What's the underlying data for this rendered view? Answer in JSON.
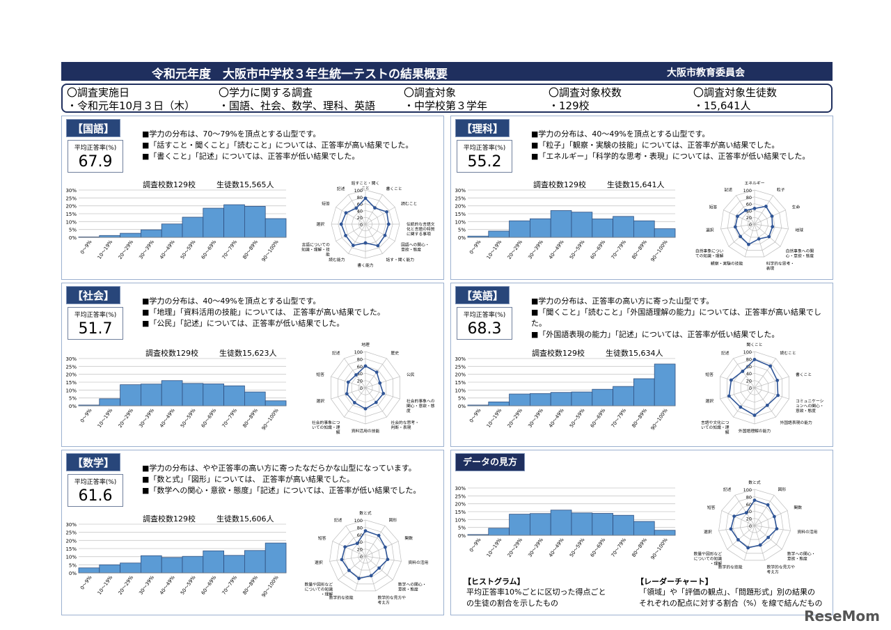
{
  "title": "令和元年度　大阪市中学校３年生統一テストの結果概要",
  "organization": "大阪市教育委員会",
  "info": [
    {
      "heading": "〇調査実施日",
      "value": "・令和元年10月３日（木）"
    },
    {
      "heading": "〇学力に関する調査",
      "value": "・国語、社会、数学、理科、英語"
    },
    {
      "heading": "〇調査対象",
      "value": "・中学校第３学年"
    },
    {
      "heading": "〇調査対象校数",
      "value": "・129校"
    },
    {
      "heading": "〇調査対象生徒数",
      "value": "・15,641人"
    }
  ],
  "avg_label": "平均正答率(%)",
  "hist_categories": [
    "0～9%",
    "10～19%",
    "20～29%",
    "30～39%",
    "40～49%",
    "50～59%",
    "60～69%",
    "70～79%",
    "80～89%",
    "90～100%"
  ],
  "y_ticks": [
    "0%",
    "5%",
    "10%",
    "15%",
    "20%",
    "25%",
    "30%"
  ],
  "radar_ticks": [
    "0",
    "20",
    "40",
    "60",
    "80",
    "100"
  ],
  "subjects": {
    "kokugo": {
      "tag": "【国語】",
      "avg": "67.9",
      "notes": [
        "■学力の分布は、70～79%を頂点とする山型です。",
        "■「話すこと・聞くこと」「読むこと」については、正答率が高い結果でした。",
        "■「書くこと」「記述」については、正答率が低い結果でした。"
      ],
      "schools": "調査校数129校",
      "students": "生徒数15,565人"
    },
    "rika": {
      "tag": "【理科】",
      "avg": "55.2",
      "notes": [
        "■学力の分布は、40～49%を頂点とする山型です。",
        "■「粒子」「観察・実験の技能」については、正答率が高い結果でした。",
        "■「エネルギー」「科学的な思考・表現」については、正答率が低い結果でした。"
      ],
      "schools": "調査校数129校",
      "students": "生徒数15,641人"
    },
    "shakai": {
      "tag": "【社会】",
      "avg": "51.7",
      "notes": [
        "■学力の分布は、40～49%を頂点とする山型です。",
        "■「地理」「資料活用の技能」については、 正答率が高い結果でした。",
        "■「公民」「記述」については、正答率が低い結果でした。"
      ],
      "schools": "調査校数129校",
      "students": "生徒数15,623人"
    },
    "eigo": {
      "tag": "【英語】",
      "avg": "68.3",
      "notes": [
        "■学力の分布は、正答率の高い方に寄った山型です。",
        "■「聞くこと」「読むこと」「外国語理解の能力」については、正答率が高い結果でした。",
        "■「外国語表現の能力」「記述」については、正答率が低い結果でした。"
      ],
      "schools": "調査校数129校",
      "students": "生徒数15,634人"
    },
    "sugaku": {
      "tag": "【数学】",
      "avg": "61.6",
      "notes": [
        "■学力の分布は、やや正答率の高い方に寄ったなだらかな山型になっています。",
        "■「数と式」「図形」については、 正答率が高い結果でした。",
        "■「数学への関心・意欲・態度」「記述」については、正答率が低い結果でした。"
      ],
      "schools": "調査校数129校",
      "students": "生徒数15,606人"
    }
  },
  "guide": {
    "tag": "データの見方",
    "hist_title": "【ヒストグラム】",
    "hist_text": [
      "平均正答率10%ごとに区切った得点ごと",
      "の生徒の割合を示したもの"
    ],
    "radar_title": "【レーダーチャート】",
    "radar_text": [
      "「領域」や「評価の観点」、「問題形式」別の結果の",
      "それぞれの配点に対する割合（%）を線で結んだもの"
    ]
  },
  "chart_data": [
    {
      "id": "kokugo-hist",
      "type": "bar",
      "categories": [
        "0～9%",
        "10～19%",
        "20～29%",
        "30～39%",
        "40～49%",
        "50～59%",
        "60～69%",
        "70～79%",
        "80～89%",
        "90～100%"
      ],
      "values": [
        0.3,
        1.2,
        2.6,
        4.8,
        8.5,
        12.8,
        18.5,
        20.7,
        19.7,
        11.9
      ],
      "ylim": [
        0,
        30
      ]
    },
    {
      "id": "kokugo-radar",
      "type": "radar",
      "axes": [
        "話すこと・聞くこと",
        "書くこと",
        "読むこと",
        "伝統的な言語文化と言語の特質に関する事項",
        "国語への関心・意欲・態度",
        "話す・聞く能力",
        "書く能力",
        "読む能力",
        "言語についての知識・理解・技能",
        "選択",
        "短答",
        "記述"
      ],
      "values": [
        76,
        55,
        72,
        68,
        66,
        73,
        55,
        72,
        67,
        71,
        66,
        54
      ],
      "ylim": [
        0,
        100
      ]
    },
    {
      "id": "rika-hist",
      "type": "bar",
      "categories": [
        "0～9%",
        "10～19%",
        "20～29%",
        "30～39%",
        "40～49%",
        "50～59%",
        "60～69%",
        "70～79%",
        "80～89%",
        "90～100%"
      ],
      "values": [
        0.8,
        4.0,
        10.5,
        11.8,
        17.0,
        16.0,
        11.7,
        13.3,
        10.5,
        5.5
      ],
      "ylim": [
        0,
        30
      ]
    },
    {
      "id": "rika-radar",
      "type": "radar",
      "axes": [
        "エネルギー",
        "粒子",
        "生命",
        "地球",
        "自然事象への関心・意欲・態度",
        "科学的な思考・表現",
        "観察・実験の技能",
        "自然事象についての知識・理解",
        "選択",
        "短答",
        "記述"
      ],
      "values": [
        46,
        62,
        56,
        53,
        56,
        45,
        62,
        55,
        57,
        55,
        48
      ],
      "ylim": [
        0,
        100
      ]
    },
    {
      "id": "shakai-hist",
      "type": "bar",
      "categories": [
        "0～9%",
        "10～19%",
        "20～29%",
        "30～39%",
        "40～49%",
        "50～59%",
        "60～69%",
        "70～79%",
        "80～89%",
        "90～100%"
      ],
      "values": [
        0.5,
        4.5,
        13.4,
        13.8,
        16.0,
        14.2,
        13.9,
        12.7,
        8.8,
        3.2
      ],
      "ylim": [
        0,
        30
      ]
    },
    {
      "id": "shakai-radar",
      "type": "radar",
      "axes": [
        "地理",
        "歴史",
        "公民",
        "社会的事象への関心・意欲・態度",
        "社会的な思考・判断・表現",
        "資料活用の技能",
        "社会的事象についての知識・理解",
        "選択",
        "短答",
        "記述"
      ],
      "values": [
        60,
        53,
        42,
        52,
        50,
        58,
        51,
        54,
        50,
        44
      ],
      "ylim": [
        0,
        100
      ]
    },
    {
      "id": "eigo-hist",
      "type": "bar",
      "categories": [
        "0～9%",
        "10～19%",
        "20～29%",
        "30～39%",
        "40～49%",
        "50～59%",
        "60～69%",
        "70～79%",
        "80～89%",
        "90～100%"
      ],
      "values": [
        0.5,
        2.5,
        7.5,
        7.8,
        8.5,
        8.8,
        10.5,
        12.3,
        17.2,
        26.5
      ],
      "ylim": [
        0,
        30
      ]
    },
    {
      "id": "eigo-radar",
      "type": "radar",
      "axes": [
        "聞くこと",
        "読むこと",
        "書くこと",
        "コミュニケーションへの関心・意欲・態度",
        "外国語表現の能力",
        "外国語理解の能力",
        "言語や文化についての知識・理解",
        "選択",
        "短答",
        "記述"
      ],
      "values": [
        78,
        74,
        66,
        68,
        60,
        76,
        66,
        74,
        68,
        56
      ],
      "ylim": [
        0,
        100
      ]
    },
    {
      "id": "sugaku-hist",
      "type": "bar",
      "categories": [
        "0～9%",
        "10～19%",
        "20～29%",
        "30～39%",
        "40～49%",
        "50～59%",
        "60～69%",
        "70～79%",
        "80～89%",
        "90～100%"
      ],
      "values": [
        3.1,
        5.0,
        6.1,
        10.6,
        9.5,
        10.2,
        13.6,
        10.8,
        13.8,
        18.4
      ],
      "ylim": [
        0,
        30
      ]
    },
    {
      "id": "sugaku-radar",
      "type": "radar",
      "axes": [
        "数と式",
        "図形",
        "関数",
        "資料の活用",
        "数学への関心・意欲・態度",
        "数学的な見方や考え方",
        "数学的な技能",
        "数量や図形などについての知識・理解",
        "選択",
        "短答",
        "記述"
      ],
      "values": [
        70,
        68,
        60,
        62,
        50,
        56,
        64,
        60,
        66,
        62,
        42
      ],
      "ylim": [
        0,
        100
      ]
    },
    {
      "id": "guide-hist",
      "type": "bar",
      "categories": [
        "0～9%",
        "10～19%",
        "20～29%",
        "30～39%",
        "40～49%",
        "50～59%",
        "60～69%",
        "70～79%",
        "80～89%",
        "90～100%"
      ],
      "values": [
        0.5,
        4.5,
        13.4,
        13.8,
        16.0,
        14.2,
        13.9,
        12.7,
        8.8,
        3.2
      ],
      "ylim": [
        0,
        30
      ]
    },
    {
      "id": "guide-radar",
      "type": "radar",
      "axes": [
        "数と式",
        "図形",
        "関数",
        "資料の活用",
        "数学への関心・意欲・態度",
        "数学的な見方や考え方",
        "数学的な技能",
        "数量や図形などについての知識・理解",
        "選択",
        "短答",
        "記述"
      ],
      "values": [
        70,
        68,
        60,
        62,
        50,
        56,
        64,
        60,
        66,
        62,
        42
      ],
      "ylim": [
        0,
        100
      ]
    }
  ],
  "watermark": "ReseMom"
}
